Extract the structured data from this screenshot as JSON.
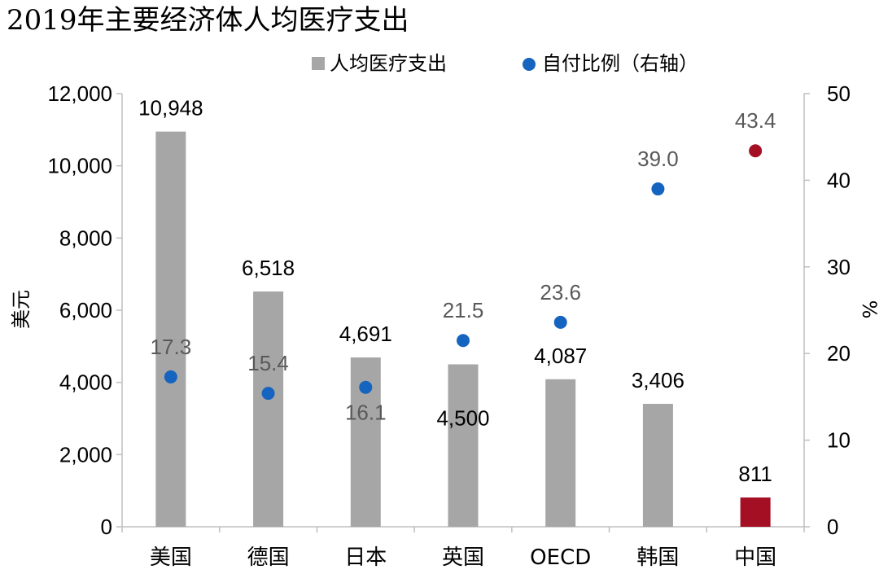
{
  "chart_data": {
    "type": "bar",
    "title": "2019年主要经济体人均医疗支出",
    "categories": [
      "美国",
      "德国",
      "日本",
      "英国",
      "OECD",
      "韩国",
      "中国"
    ],
    "series": [
      {
        "name": "人均医疗支出",
        "type": "bar",
        "axis": "left",
        "values": [
          10948,
          6518,
          4691,
          4500,
          4087,
          3406,
          811
        ],
        "data_labels": [
          "10,948",
          "6,518",
          "4,691",
          "4,500",
          "4,087",
          "3,406",
          "811"
        ],
        "color": "#a6a6a6",
        "highlight_color": "#a50f24"
      },
      {
        "name": "自付比例（右轴）",
        "type": "scatter",
        "axis": "right",
        "values": [
          17.3,
          15.4,
          16.1,
          21.5,
          23.6,
          39.0,
          43.4
        ],
        "data_labels": [
          "17.3",
          "15.4",
          "16.1",
          "21.5",
          "23.6",
          "39.0",
          "43.4"
        ],
        "color": "#1565c0",
        "highlight_color": "#a50f24"
      }
    ],
    "highlight_category": "中国",
    "ylabel": "美元",
    "y2label": "%",
    "ylim": [
      0,
      12000
    ],
    "yticks": [
      "0",
      "2,000",
      "4,000",
      "6,000",
      "8,000",
      "10,000",
      "12,000"
    ],
    "y2lim": [
      0,
      50
    ],
    "y2ticks": [
      "0",
      "10",
      "20",
      "30",
      "40",
      "50"
    ],
    "grid": false,
    "legend": "top-center"
  }
}
